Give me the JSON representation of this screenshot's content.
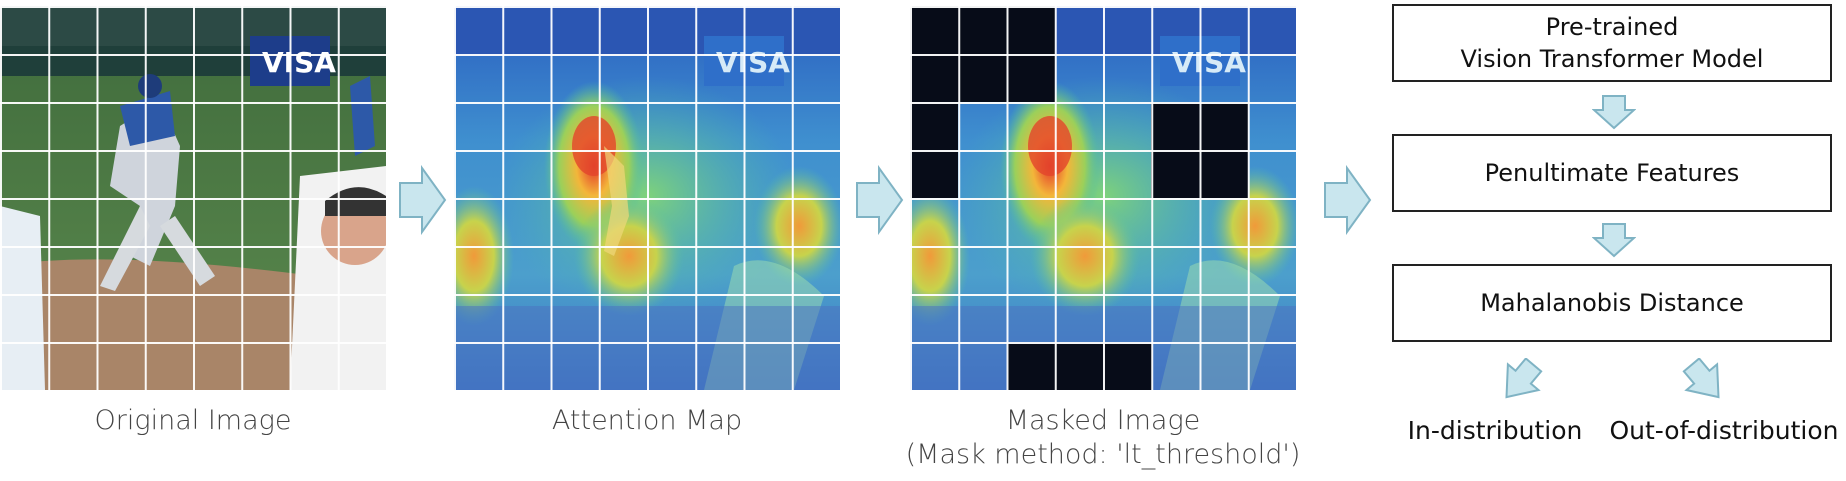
{
  "panels": {
    "original": {
      "caption": "Original Image",
      "overlay_text": "VISA"
    },
    "attention": {
      "caption": "Attention Map",
      "overlay_text": "VISA"
    },
    "masked": {
      "caption_line1": "Masked Image",
      "caption_line2": "(Mask method: 'lt_threshold')",
      "overlay_text": "VISA"
    }
  },
  "pipeline": {
    "box1_line1": "Pre-trained",
    "box1_line2": "Vision Transformer Model",
    "box2": "Penultimate Features",
    "box3": "Mahalanobis Distance",
    "out_left": "In-distribution",
    "out_right": "Out-of-distribution"
  },
  "colors": {
    "arrow_fill": "#c9e6ee",
    "arrow_stroke": "#7fb3c4",
    "mask": "#070c18",
    "box_border": "#222222"
  },
  "icons": [
    "right-arrow-icon",
    "down-arrow-icon",
    "diagonal-arrow-icon"
  ]
}
